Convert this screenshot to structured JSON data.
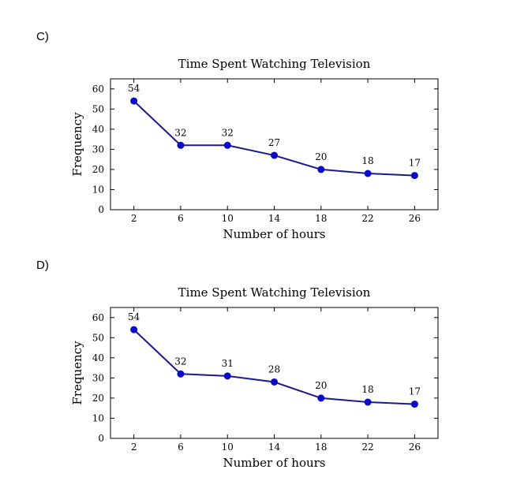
{
  "option_labels": [
    "C)",
    "D)"
  ],
  "chart_data": [
    {
      "type": "line",
      "title": "Time Spent Watching Television",
      "xlabel": "Number of hours",
      "ylabel": "Frequency",
      "x": [
        2,
        6,
        10,
        14,
        18,
        22,
        26
      ],
      "values": [
        54,
        32,
        32,
        27,
        20,
        18,
        17
      ],
      "xticks": [
        2,
        6,
        10,
        14,
        18,
        22,
        26
      ],
      "yticks": [
        0,
        10,
        20,
        30,
        40,
        50,
        60
      ],
      "xlim": [
        0,
        28
      ],
      "ylim": [
        0,
        65
      ],
      "grid": false,
      "color": "#0a0ac8"
    },
    {
      "type": "line",
      "title": "Time Spent Watching Television",
      "xlabel": "Number of hours",
      "ylabel": "Frequency",
      "x": [
        2,
        6,
        10,
        14,
        18,
        22,
        26
      ],
      "values": [
        54,
        32,
        31,
        28,
        20,
        18,
        17
      ],
      "xticks": [
        2,
        6,
        10,
        14,
        18,
        22,
        26
      ],
      "yticks": [
        0,
        10,
        20,
        30,
        40,
        50,
        60
      ],
      "xlim": [
        0,
        28
      ],
      "ylim": [
        0,
        65
      ],
      "grid": false,
      "color": "#0a0ac8"
    }
  ]
}
